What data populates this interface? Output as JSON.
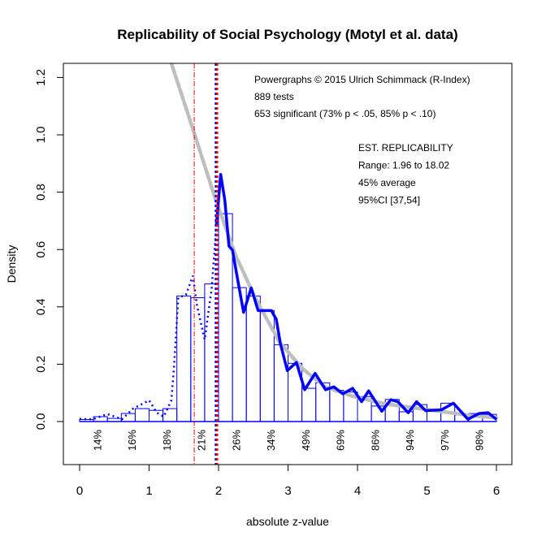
{
  "chart_data": {
    "type": "histogram",
    "title": "Replicability of Social Psychology (Motyl et al. data)",
    "xlabel": "absolute z-value",
    "ylabel": "Density",
    "xlim": [
      0,
      6
    ],
    "ylim": [
      -0.15,
      1.25
    ],
    "x_ticks": [
      "0",
      "1",
      "2",
      "3",
      "4",
      "5",
      "6"
    ],
    "y_ticks": [
      "0.0",
      "0.2",
      "0.4",
      "0.6",
      "0.8",
      "1.0",
      "1.2"
    ],
    "grid": false,
    "colors": {
      "histogram": "#0000ff",
      "kernel_density": "#0000ff",
      "fitted_curve": "#bebebe",
      "criterion_line": "#ff0000"
    },
    "histogram": {
      "bin_width": 0.2,
      "bin_starts": [
        0,
        0.2,
        0.4,
        0.6,
        0.8,
        1.0,
        1.2,
        1.4,
        1.6,
        1.8,
        2.0,
        2.2,
        2.4,
        2.6,
        2.8,
        3.0,
        3.2,
        3.4,
        3.6,
        3.8,
        4.0,
        4.2,
        4.4,
        4.6,
        4.8,
        5.0,
        5.2,
        5.4,
        5.6,
        5.8
      ],
      "density": [
        0.007,
        0.017,
        0.011,
        0.028,
        0.045,
        0.039,
        0.045,
        0.438,
        0.432,
        0.48,
        0.725,
        0.467,
        0.438,
        0.387,
        0.268,
        0.203,
        0.116,
        0.135,
        0.109,
        0.103,
        0.087,
        0.054,
        0.077,
        0.034,
        0.059,
        0.039,
        0.064,
        0.023,
        0.028,
        0.025
      ]
    },
    "kernel_density_nonsignificant": {
      "x": [
        0,
        0.19,
        0.4,
        0.61,
        0.77,
        1.0,
        1.11,
        1.21,
        1.32,
        1.36,
        1.42,
        1.53,
        1.63,
        1.69,
        1.8,
        1.9,
        1.97
      ],
      "y": [
        0.009,
        0.008,
        0.026,
        0.008,
        0.045,
        0.074,
        0.031,
        0.017,
        0.074,
        0.196,
        0.432,
        0.442,
        0.508,
        0.404,
        0.286,
        0.461,
        0.687
      ]
    },
    "kernel_density_significant": {
      "x": [
        1.97,
        2.03,
        2.09,
        2.15,
        2.2,
        2.28,
        2.36,
        2.47,
        2.57,
        2.76,
        2.83,
        2.89,
        2.99,
        3.12,
        3.24,
        3.39,
        3.54,
        3.66,
        3.79,
        3.93,
        4.06,
        4.16,
        4.35,
        4.48,
        4.58,
        4.73,
        4.85,
        4.98,
        5.21,
        5.38,
        5.59,
        5.75,
        5.88,
        6.0
      ],
      "y": [
        0.687,
        0.862,
        0.772,
        0.612,
        0.598,
        0.489,
        0.381,
        0.466,
        0.387,
        0.387,
        0.357,
        0.272,
        0.178,
        0.206,
        0.111,
        0.168,
        0.111,
        0.121,
        0.097,
        0.116,
        0.069,
        0.107,
        0.036,
        0.076,
        0.069,
        0.031,
        0.069,
        0.038,
        0.041,
        0.064,
        0.008,
        0.028,
        0.031,
        0.008
      ]
    },
    "fitted_curve": {
      "x": [
        1.32,
        1.63,
        1.95,
        2.24,
        2.53,
        2.87,
        3.2,
        3.54,
        3.95,
        4.37,
        5.0,
        5.63,
        6.0
      ],
      "y": [
        1.25,
        1.02,
        0.78,
        0.583,
        0.43,
        0.28,
        0.186,
        0.12,
        0.087,
        0.063,
        0.042,
        0.021,
        0.013
      ]
    },
    "vertical_lines": [
      {
        "x": 1.65,
        "style": "dashdot",
        "color": "#ff0000"
      },
      {
        "x": 1.96,
        "style": "dotted",
        "color": "#0000ff"
      },
      {
        "x": 1.98,
        "style": "dotted",
        "color": "#ff0000"
      }
    ],
    "power_labels": {
      "x": [
        0.25,
        0.75,
        1.25,
        1.75,
        2.25,
        2.75,
        3.25,
        3.75,
        4.25,
        4.75,
        5.25,
        5.75
      ],
      "labels": [
        "14%",
        "16%",
        "18%",
        "21%",
        "26%",
        "34%",
        "49%",
        "69%",
        "86%",
        "94%",
        "97%",
        "98%"
      ]
    },
    "annotations": {
      "header": [
        "Powergraphs © 2015 Ulrich Schimmack (R-Index)",
        "889 tests",
        "653 significant (73% p < .05, 85% p < .10)"
      ],
      "replicability": [
        "EST. REPLICABILITY",
        "Range: 1.96 to 18.02",
        "45% average",
        "95%CI [37,54]"
      ]
    }
  }
}
